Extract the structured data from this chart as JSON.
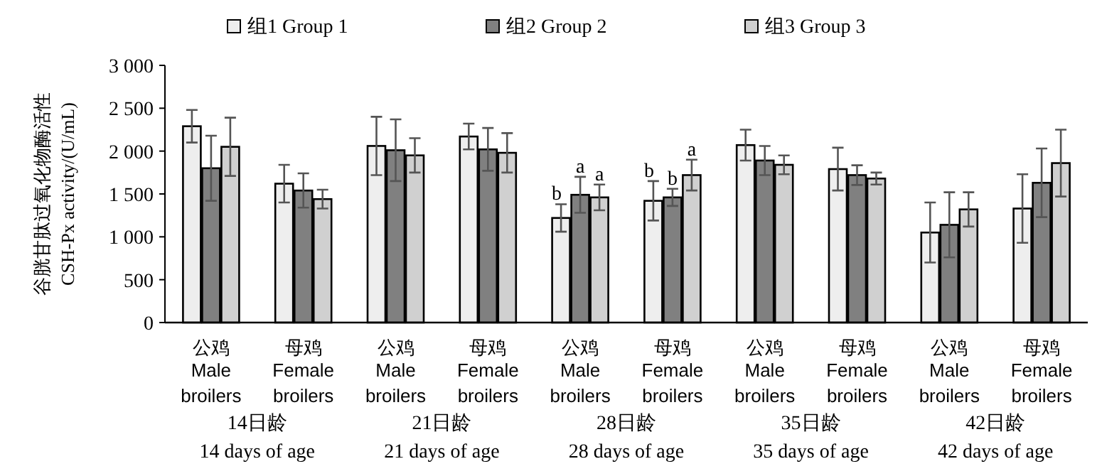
{
  "chart_data": {
    "type": "bar",
    "ylabel": "谷胱甘肽过氧化物酶活性 CSH-Px activity/(U/mL)",
    "categories": [
      "公鸡 Male broilers",
      "母鸡 Female broilers",
      "公鸡 Male broilers",
      "母鸡 Female broilers",
      "公鸡 Male broilers",
      "母鸡 Female broilers",
      "公鸡 Male broilers",
      "母鸡 Female broilers",
      "公鸡 Male broilers",
      "母鸡 Female broilers"
    ],
    "series": [
      {
        "name": "组1 Group 1",
        "color": "#eeeeee",
        "values": [
          2290,
          1620,
          2060,
          2170,
          1220,
          1420,
          2070,
          1790,
          1050,
          1330
        ],
        "errors": [
          190,
          220,
          340,
          150,
          160,
          230,
          180,
          250,
          350,
          400
        ],
        "value_labels": [
          null,
          null,
          null,
          null,
          "b",
          "b",
          null,
          null,
          null,
          null
        ]
      },
      {
        "name": "组2 Group 2",
        "color": "#808080",
        "values": [
          1800,
          1540,
          2010,
          2020,
          1490,
          1460,
          1890,
          1720,
          1140,
          1630
        ],
        "errors": [
          380,
          200,
          360,
          250,
          210,
          100,
          170,
          115,
          380,
          400
        ],
        "value_labels": [
          null,
          null,
          null,
          null,
          "a",
          "b",
          null,
          null,
          null,
          null
        ]
      },
      {
        "name": "组3 Group 3",
        "color": "#d0d0d0",
        "values": [
          2050,
          1440,
          1950,
          1980,
          1460,
          1720,
          1840,
          1680,
          1320,
          1860
        ],
        "errors": [
          340,
          110,
          200,
          230,
          150,
          180,
          110,
          70,
          200,
          390
        ],
        "value_labels": [
          null,
          null,
          null,
          null,
          "a",
          "a",
          null,
          null,
          null,
          null
        ]
      }
    ],
    "annotations": [
      "14日龄 14 days of age",
      "21日龄 21 days of age",
      "28日龄 28 days of age",
      "35日龄 35 days of age",
      "42日龄 42 days of age"
    ],
    "ylim": [
      0,
      3000
    ],
    "yticks": [
      0,
      500,
      {
        "value": 1000,
        "label": "1 000"
      },
      {
        "value": 1500,
        "label": "1 500"
      },
      {
        "value": 2000,
        "label": "2 000"
      },
      {
        "value": 2500,
        "label": "2 500"
      },
      {
        "value": 3000,
        "label": "3 000"
      }
    ],
    "legend": "top",
    "grid": false
  }
}
